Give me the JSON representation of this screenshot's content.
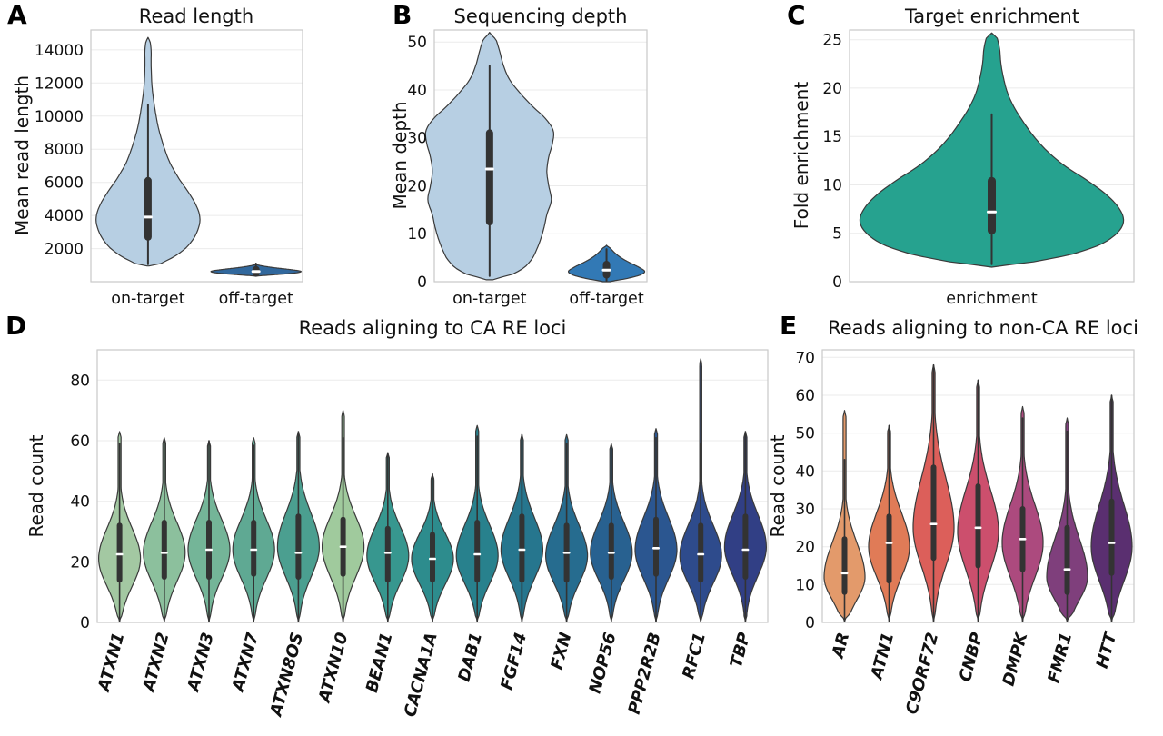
{
  "styles": {
    "background": "#ffffff",
    "grid_color": "#ebebeb",
    "spine_color": "#c9c9c9",
    "violin_stroke": "#3a3a3a",
    "box_color": "#333333",
    "median_color": "#ffffff",
    "text_color": "#111111"
  },
  "chart_data": [
    {
      "id": "A",
      "type": "violin",
      "letter": "A",
      "title": "Read length",
      "ylabel": "Mean read length",
      "ylim": [
        0,
        15200
      ],
      "yticks": [
        2000,
        4000,
        6000,
        8000,
        10000,
        12000,
        14000
      ],
      "categories": [
        "on-target",
        "off-target"
      ],
      "violins": [
        {
          "label": "on-target",
          "color": "#b7cfe3",
          "hw": 1.0,
          "shape": [
            [
              950,
              0.02
            ],
            [
              1100,
              0.25
            ],
            [
              1500,
              0.5
            ],
            [
              2000,
              0.72
            ],
            [
              2600,
              0.88
            ],
            [
              3300,
              0.98
            ],
            [
              3900,
              1.0
            ],
            [
              4600,
              0.93
            ],
            [
              5400,
              0.78
            ],
            [
              6200,
              0.6
            ],
            [
              7200,
              0.42
            ],
            [
              8200,
              0.3
            ],
            [
              9300,
              0.2
            ],
            [
              10500,
              0.13
            ],
            [
              11700,
              0.08
            ],
            [
              13000,
              0.06
            ],
            [
              14000,
              0.06
            ],
            [
              14500,
              0.04
            ],
            [
              14750,
              0.0
            ]
          ],
          "q1": 2700,
          "median": 3900,
          "q3": 6100,
          "wlo": 1050,
          "whi": 10700
        },
        {
          "label": "off-target",
          "color": "#31689d",
          "hw": 0.87,
          "shape": [
            [
              330,
              0.0
            ],
            [
              420,
              0.4
            ],
            [
              520,
              0.85
            ],
            [
              620,
              1.0
            ],
            [
              720,
              0.8
            ],
            [
              830,
              0.45
            ],
            [
              950,
              0.15
            ],
            [
              1050,
              0.0
            ]
          ],
          "q1": 520,
          "median": 620,
          "q3": 730,
          "wlo": 380,
          "whi": 1100
        }
      ]
    },
    {
      "id": "B",
      "type": "violin",
      "letter": "B",
      "title": "Sequencing depth",
      "ylabel": "Mean depth",
      "ylim": [
        0,
        52.5
      ],
      "yticks": [
        0,
        10,
        20,
        30,
        40,
        50
      ],
      "categories": [
        "on-target",
        "off-target"
      ],
      "violins": [
        {
          "label": "on-target",
          "color": "#b7cfe3",
          "hw": 1.0,
          "shape": [
            [
              0.4,
              0.05
            ],
            [
              1.5,
              0.35
            ],
            [
              3,
              0.55
            ],
            [
              5,
              0.68
            ],
            [
              8,
              0.78
            ],
            [
              11,
              0.85
            ],
            [
              14,
              0.9
            ],
            [
              17,
              0.97
            ],
            [
              20,
              0.93
            ],
            [
              23,
              0.9
            ],
            [
              26,
              0.93
            ],
            [
              29,
              0.99
            ],
            [
              31.5,
              1.0
            ],
            [
              34,
              0.88
            ],
            [
              36.5,
              0.68
            ],
            [
              39,
              0.5
            ],
            [
              42,
              0.32
            ],
            [
              45,
              0.22
            ],
            [
              48,
              0.16
            ],
            [
              50.5,
              0.1
            ],
            [
              52,
              0.0
            ]
          ],
          "q1": 12.5,
          "median": 23.5,
          "q3": 31,
          "wlo": 1.2,
          "whi": 45
        },
        {
          "label": "off-target",
          "color": "#3279b5",
          "hw": 0.6,
          "shape": [
            [
              0.0,
              0.1
            ],
            [
              0.6,
              0.5
            ],
            [
              1.3,
              0.85
            ],
            [
              2.1,
              1.0
            ],
            [
              3,
              0.85
            ],
            [
              4,
              0.6
            ],
            [
              5,
              0.38
            ],
            [
              6,
              0.22
            ],
            [
              7,
              0.1
            ],
            [
              7.6,
              0.0
            ]
          ],
          "q1": 1.4,
          "median": 2.4,
          "q3": 3.6,
          "wlo": 0.2,
          "whi": 6.8
        }
      ]
    },
    {
      "id": "C",
      "type": "violin",
      "letter": "C",
      "title": "Target enrichment",
      "ylabel": "Fold enrichment",
      "ylim": [
        0,
        26
      ],
      "yticks": [
        0,
        5,
        10,
        15,
        20,
        25
      ],
      "categories": [
        "enrichment"
      ],
      "violins": [
        {
          "label": "enrichment",
          "color": "#26a28f",
          "hw": 1.0,
          "shape": [
            [
              1.5,
              0.0
            ],
            [
              2.0,
              0.3
            ],
            [
              2.8,
              0.6
            ],
            [
              3.8,
              0.82
            ],
            [
              5,
              0.95
            ],
            [
              6.2,
              1.0
            ],
            [
              7.5,
              0.97
            ],
            [
              9,
              0.87
            ],
            [
              10.5,
              0.72
            ],
            [
              12,
              0.55
            ],
            [
              13.5,
              0.42
            ],
            [
              15,
              0.32
            ],
            [
              16.5,
              0.24
            ],
            [
              18,
              0.17
            ],
            [
              19.5,
              0.12
            ],
            [
              21,
              0.09
            ],
            [
              22.5,
              0.07
            ],
            [
              24,
              0.06
            ],
            [
              25.2,
              0.04
            ],
            [
              25.7,
              0.0
            ]
          ],
          "q1": 5.3,
          "median": 7.2,
          "q3": 10.4,
          "wlo": 1.8,
          "whi": 17.3
        }
      ]
    },
    {
      "id": "D",
      "type": "violin",
      "letter": "D",
      "title": "Reads aligning to CA RE loci",
      "ylabel": "Read count",
      "ylim": [
        0,
        90
      ],
      "yticks": [
        0,
        20,
        40,
        60,
        80
      ],
      "categories": [
        "ATXN1",
        "ATXN2",
        "ATXN3",
        "ATXN7",
        "ATXN8OS",
        "ATXN10",
        "BEAN1",
        "CACNA1A",
        "DAB1",
        "FGF14",
        "FXN",
        "NOP56",
        "PPP2R2B",
        "RFC1",
        "TBP"
      ],
      "violins": [
        {
          "label": "ATXN1",
          "color": "#a3c8a2",
          "max": 63,
          "mode": 21,
          "slo": 9,
          "shi": 10,
          "q1": 14,
          "median": 22.5,
          "q3": 32
        },
        {
          "label": "ATXN2",
          "color": "#8cc09d",
          "max": 61,
          "mode": 23,
          "slo": 9.5,
          "shi": 10,
          "q1": 15,
          "median": 23,
          "q3": 33
        },
        {
          "label": "ATXN3",
          "color": "#74b598",
          "max": 60,
          "mode": 24,
          "slo": 9.5,
          "shi": 10,
          "q1": 15,
          "median": 24,
          "q3": 33
        },
        {
          "label": "ATXN7",
          "color": "#5fa993",
          "max": 61,
          "mode": 24,
          "slo": 9.5,
          "shi": 10,
          "q1": 16,
          "median": 24,
          "q3": 33
        },
        {
          "label": "ATXN8OS",
          "color": "#4b9f90",
          "max": 63,
          "mode": 25,
          "slo": 10,
          "shi": 11,
          "q1": 15,
          "median": 23,
          "q3": 35
        },
        {
          "label": "ATXN10",
          "color": "#a0ca9d",
          "max": 70,
          "mode": 25,
          "slo": 10,
          "shi": 10,
          "q1": 16,
          "median": 25,
          "q3": 34,
          "neck": 0.06
        },
        {
          "label": "BEAN1",
          "color": "#37978f",
          "max": 56,
          "mode": 22,
          "slo": 9,
          "shi": 9.5,
          "q1": 14,
          "median": 23,
          "q3": 31
        },
        {
          "label": "CACNA1A",
          "color": "#2d8c8d",
          "max": 49,
          "mode": 21,
          "slo": 8.5,
          "shi": 8.5,
          "q1": 14,
          "median": 21,
          "q3": 29
        },
        {
          "label": "DAB1",
          "color": "#28818d",
          "max": 65,
          "mode": 22,
          "slo": 9,
          "shi": 10,
          "q1": 14,
          "median": 22.5,
          "q3": 33
        },
        {
          "label": "FGF14",
          "color": "#26768e",
          "max": 62,
          "mode": 24,
          "slo": 9.5,
          "shi": 10.5,
          "q1": 14,
          "median": 24,
          "q3": 35
        },
        {
          "label": "FXN",
          "color": "#266c8f",
          "max": 62,
          "mode": 22,
          "slo": 9,
          "shi": 10,
          "q1": 14,
          "median": 23,
          "q3": 32
        },
        {
          "label": "NOP56",
          "color": "#286190",
          "max": 59,
          "mode": 23,
          "slo": 9,
          "shi": 10,
          "q1": 15,
          "median": 23,
          "q3": 32
        },
        {
          "label": "PPP2R2B",
          "color": "#2b5690",
          "max": 64,
          "mode": 24,
          "slo": 9.5,
          "shi": 10.5,
          "q1": 16,
          "median": 24.5,
          "q3": 34
        },
        {
          "label": "RFC1",
          "color": "#2e4b8c",
          "max": 87,
          "mode": 22,
          "slo": 9,
          "shi": 10,
          "q1": 14,
          "median": 22.5,
          "q3": 32,
          "neck": 0.05
        },
        {
          "label": "TBP",
          "color": "#313f85",
          "max": 63,
          "mode": 25,
          "slo": 9.5,
          "shi": 10.5,
          "q1": 15,
          "median": 24,
          "q3": 35
        }
      ]
    },
    {
      "id": "E",
      "type": "violin",
      "letter": "E",
      "title": "Reads aligning to non-CA RE loci",
      "ylabel": "Read count",
      "ylim": [
        0,
        72
      ],
      "yticks": [
        0,
        10,
        20,
        30,
        40,
        50,
        60,
        70
      ],
      "categories": [
        "AR",
        "ATN1",
        "C9ORF72",
        "CNBP",
        "DMPK",
        "FMR1",
        "HTT"
      ],
      "violins": [
        {
          "label": "AR",
          "color": "#e39a6b",
          "max": 56,
          "mode": 12,
          "slo": 6,
          "shi": 9,
          "q1": 8,
          "median": 13,
          "q3": 22
        },
        {
          "label": "ATN1",
          "color": "#e07b57",
          "max": 52,
          "mode": 20,
          "slo": 8,
          "shi": 9,
          "q1": 11,
          "median": 21,
          "q3": 28
        },
        {
          "label": "C9ORF72",
          "color": "#dc5f5a",
          "max": 68,
          "mode": 25,
          "slo": 10,
          "shi": 13,
          "q1": 17,
          "median": 26,
          "q3": 41
        },
        {
          "label": "CNBP",
          "color": "#cc4f6d",
          "max": 64,
          "mode": 24,
          "slo": 10,
          "shi": 11,
          "q1": 15,
          "median": 25,
          "q3": 36
        },
        {
          "label": "DMPK",
          "color": "#ac4a7e",
          "max": 57,
          "mode": 21,
          "slo": 9,
          "shi": 10,
          "q1": 14,
          "median": 22,
          "q3": 30
        },
        {
          "label": "FMR1",
          "color": "#7f3f7c",
          "max": 54,
          "mode": 12,
          "slo": 6,
          "shi": 10,
          "q1": 8,
          "median": 14,
          "q3": 25
        },
        {
          "label": "HTT",
          "color": "#5a2f70",
          "max": 60,
          "mode": 20,
          "slo": 9,
          "shi": 11,
          "q1": 13,
          "median": 21,
          "q3": 32
        }
      ]
    }
  ]
}
